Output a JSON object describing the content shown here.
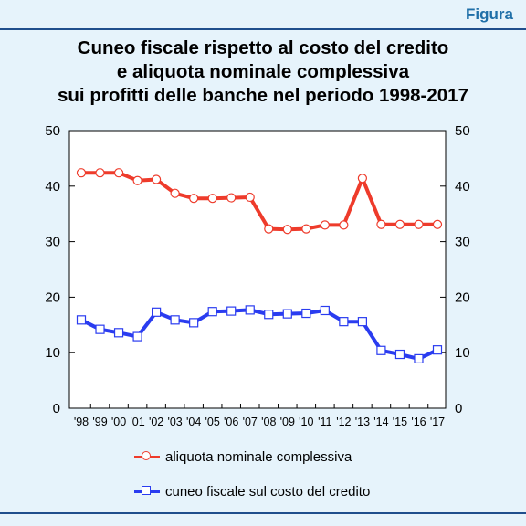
{
  "header": {
    "figura_label": "Figura"
  },
  "chart_data": {
    "type": "line",
    "title_lines": [
      "Cuneo fiscale rispetto al costo del credito",
      "e aliquota nominale complessiva",
      "sui profitti delle banche nel periodo 1998-2017"
    ],
    "categories": [
      "'98",
      "'99",
      "'00",
      "'01",
      "'02",
      "'03",
      "'04",
      "'05",
      "'06",
      "'07",
      "'08",
      "'09",
      "'10",
      "'11",
      "'12",
      "'13",
      "'14",
      "'15",
      "'16",
      "'17"
    ],
    "ylim": [
      0,
      50
    ],
    "yticks": [
      0,
      10,
      20,
      30,
      40,
      50
    ],
    "secondary_axis": true,
    "grid": false,
    "legend_position": "bottom",
    "series": [
      {
        "name": "aliquota nominale complessiva",
        "color": "#ee3b2b",
        "marker": "circle",
        "values": [
          42.4,
          42.4,
          42.4,
          41.0,
          41.2,
          38.7,
          37.8,
          37.8,
          37.9,
          38.0,
          32.3,
          32.2,
          32.3,
          33.0,
          33.0,
          41.4,
          33.1,
          33.1,
          33.1,
          33.1
        ]
      },
      {
        "name": "cuneo fiscale sul costo del credito",
        "color": "#2a3cf0",
        "marker": "square",
        "values": [
          15.9,
          14.2,
          13.6,
          12.9,
          17.3,
          15.9,
          15.4,
          17.4,
          17.5,
          17.7,
          16.9,
          17.0,
          17.1,
          17.6,
          15.6,
          15.6,
          10.4,
          9.7,
          8.9,
          10.5
        ]
      }
    ]
  }
}
